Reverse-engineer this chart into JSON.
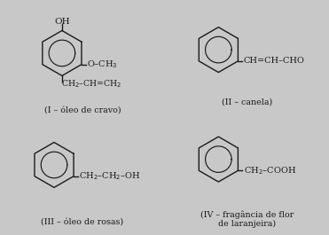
{
  "background_color": "#c8c8c8",
  "cell_bg": "#dcdcdc",
  "line_color": "#1a1a1a",
  "text_color": "#1a1a1a",
  "labels": [
    "(I – óleo de cravo)",
    "(II – canela)",
    "(III – óleo de rosas)",
    "(IV – fragância de flor\nde laranjeira)"
  ],
  "font_size": 7.0,
  "label_font_size": 6.8
}
